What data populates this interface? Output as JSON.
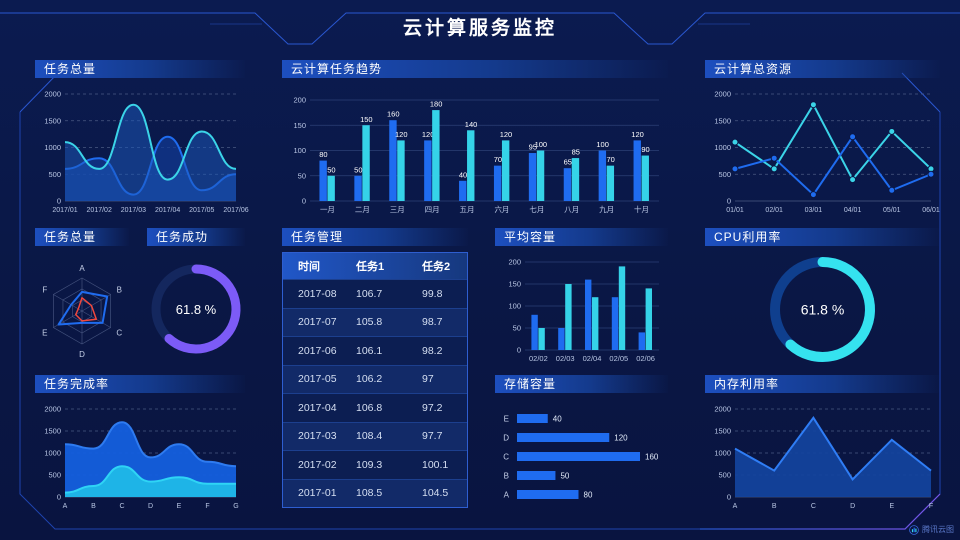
{
  "header": {
    "title": "云计算服务监控"
  },
  "watermark": {
    "label": "腾讯云图"
  },
  "panels": {
    "task_total": {
      "title": "任务总量"
    },
    "task_trend": {
      "title": "云计算任务趋势"
    },
    "cloud_resources": {
      "title": "云计算总资源"
    },
    "task_radar": {
      "title": "任务总量"
    },
    "task_success": {
      "title": "任务成功"
    },
    "task_manage": {
      "title": "任务管理"
    },
    "avg_capacity": {
      "title": "平均容量"
    },
    "cpu_usage": {
      "title": "CPU利用率"
    },
    "task_completion": {
      "title": "任务完成率"
    },
    "storage": {
      "title": "存储容量"
    },
    "mem_usage": {
      "title": "内存利用率"
    }
  },
  "colors": {
    "blue": "#1f6cf0",
    "cyan": "#35d3e8",
    "purple": "#7c5bf7",
    "red": "#f0483e",
    "axis_text": "#b9c6e4",
    "grid": "#33477e",
    "panel_title": "#1d4fbf",
    "frame": "#2553c9"
  },
  "chart_data": {
    "task_total": {
      "type": "line",
      "smooth": true,
      "grid": "dashed",
      "title": "任务总量",
      "ylim": [
        0,
        2000
      ],
      "ystep": 500,
      "x": [
        "2017/01",
        "2017/02",
        "2017/03",
        "2017/04",
        "2017/05",
        "2017/06"
      ],
      "series": [
        {
          "name": "series-blue",
          "color": "#1f6cf0",
          "fill": "rgba(17,58,150,0.7)",
          "values": [
            600,
            800,
            120,
            1200,
            200,
            500
          ]
        },
        {
          "name": "series-cyan",
          "color": "#3bd4e8",
          "fill": "rgba(27,90,190,0.5)",
          "values": [
            1100,
            600,
            1800,
            400,
            1300,
            600
          ]
        }
      ]
    },
    "task_trend": {
      "type": "bar",
      "labels": true,
      "grid": "solid",
      "title": "云计算任务趋势",
      "ylim": [
        0,
        200
      ],
      "ystep": 50,
      "x": [
        "一月",
        "二月",
        "三月",
        "四月",
        "五月",
        "六月",
        "七月",
        "八月",
        "九月",
        "十月"
      ],
      "series": [
        {
          "name": "任务1",
          "color": "#1f6cf0",
          "values": [
            80,
            50,
            160,
            120,
            40,
            70,
            95,
            65,
            100,
            120
          ]
        },
        {
          "name": "任务2",
          "color": "#35d3e8",
          "values": [
            50,
            150,
            120,
            180,
            140,
            120,
            100,
            85,
            70,
            90
          ]
        }
      ]
    },
    "cloud_resources": {
      "type": "line",
      "smooth": false,
      "markers": true,
      "grid": "dashed",
      "title": "云计算总资源",
      "ylim": [
        0,
        2000
      ],
      "ystep": 500,
      "x": [
        "01/01",
        "02/01",
        "03/01",
        "04/01",
        "05/01",
        "06/01"
      ],
      "series": [
        {
          "name": "series-cyan",
          "color": "#3bd4e8",
          "values": [
            1100,
            600,
            1800,
            400,
            1300,
            600
          ]
        },
        {
          "name": "series-blue",
          "color": "#1f6cf0",
          "values": [
            600,
            800,
            120,
            1200,
            200,
            500
          ]
        }
      ]
    },
    "task_radar": {
      "type": "radar",
      "title": "任务总量",
      "max": 100,
      "axes": [
        "A",
        "B",
        "C",
        "D",
        "E",
        "F"
      ],
      "series": [
        {
          "name": "blue",
          "color": "#1f6cf0",
          "width": 2,
          "values": [
            58,
            88,
            72,
            36,
            82,
            38
          ]
        },
        {
          "name": "red",
          "color": "#f0483e",
          "width": 1.5,
          "values": [
            40,
            33,
            50,
            30,
            22,
            13
          ]
        }
      ]
    },
    "task_success": {
      "type": "donut",
      "title": "任务成功",
      "percent": 61.8,
      "label": "61.8 %",
      "color": "#7c5bf7",
      "track": "#14275e"
    },
    "task_table": {
      "type": "table",
      "title": "任务管理",
      "headers": [
        "时间",
        "任务1",
        "任务2"
      ],
      "rows": [
        [
          "2017-08",
          "106.7",
          "99.8"
        ],
        [
          "2017-07",
          "105.8",
          "98.7"
        ],
        [
          "2017-06",
          "106.1",
          "98.2"
        ],
        [
          "2017-05",
          "106.2",
          "97"
        ],
        [
          "2017-04",
          "106.8",
          "97.2"
        ],
        [
          "2017-03",
          "108.4",
          "97.7"
        ],
        [
          "2017-02",
          "109.3",
          "100.1"
        ],
        [
          "2017-01",
          "108.5",
          "104.5"
        ]
      ]
    },
    "avg_capacity": {
      "type": "bar",
      "labels": false,
      "grid": "solid",
      "title": "平均容量",
      "ylim": [
        0,
        200
      ],
      "ystep": 50,
      "x": [
        "02/02",
        "02/03",
        "02/04",
        "02/05",
        "02/06"
      ],
      "series": [
        {
          "name": "blue",
          "color": "#1f6cf0",
          "values": [
            80,
            50,
            160,
            120,
            40
          ]
        },
        {
          "name": "cyan",
          "color": "#35d3e8",
          "values": [
            50,
            150,
            120,
            190,
            140
          ]
        }
      ]
    },
    "cpu_usage": {
      "type": "donut",
      "title": "CPU利用率",
      "percent": 61.8,
      "label": "61.8 %",
      "color": "#35e2ef",
      "track": "#0f3f8e"
    },
    "task_completion": {
      "type": "line",
      "smooth": true,
      "grid": "dashed",
      "title": "任务完成率",
      "ylim": [
        0,
        2000
      ],
      "ystep": 500,
      "x": [
        "A",
        "B",
        "C",
        "D",
        "E",
        "F",
        "G"
      ],
      "series": [
        {
          "name": "blue-layer",
          "color": "#2e7bf0",
          "fill": "rgba(20,95,222,0.95)",
          "values": [
            1200,
            1100,
            1700,
            900,
            1200,
            800,
            700
          ]
        },
        {
          "name": "cyan-layer",
          "color": "#2fd4f5",
          "fill": "rgba(31,185,232,0.95)",
          "values": [
            100,
            250,
            700,
            350,
            450,
            300,
            300
          ]
        }
      ]
    },
    "storage": {
      "type": "hbar",
      "title": "存储容量",
      "max": 160,
      "color": "#1f6cf0",
      "categories": [
        "E",
        "D",
        "C",
        "B",
        "A"
      ],
      "values": [
        40,
        120,
        160,
        50,
        80
      ]
    },
    "mem_usage": {
      "type": "line",
      "smooth": false,
      "grid": "dashed",
      "title": "内存利用率",
      "ylim": [
        0,
        2000
      ],
      "ystep": 500,
      "x": [
        "A",
        "B",
        "C",
        "D",
        "E",
        "F"
      ],
      "series": [
        {
          "name": "blue",
          "color": "#2f7df5",
          "fill": "rgba(19,68,158,0.92)",
          "values": [
            1100,
            600,
            1800,
            400,
            1300,
            600
          ]
        }
      ]
    }
  }
}
